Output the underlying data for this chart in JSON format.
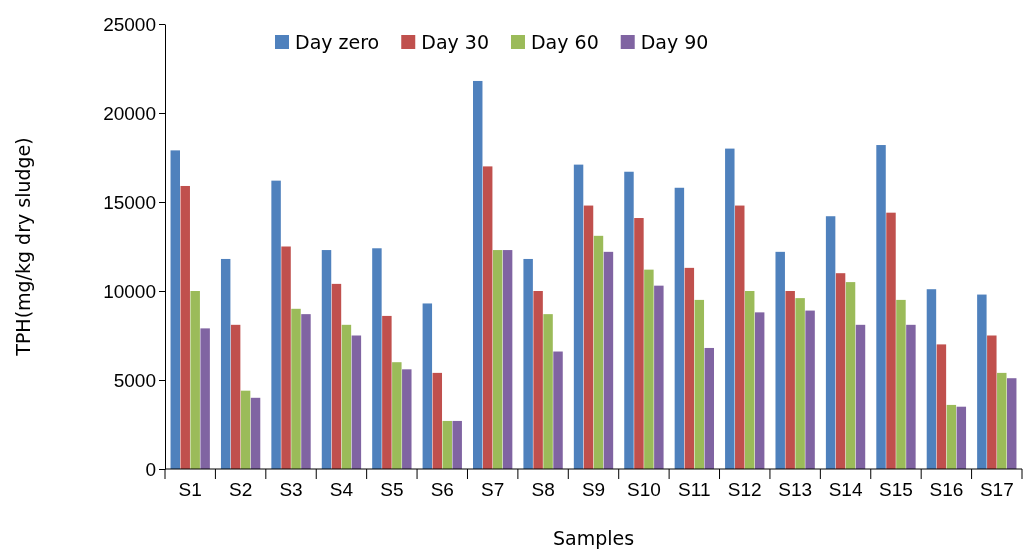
{
  "chart_data": {
    "type": "bar",
    "xlabel": "Samples",
    "ylabel": "TPH(mg/kg dry sludge)",
    "categories": [
      "S1",
      "S2",
      "S3",
      "S4",
      "S5",
      "S6",
      "S7",
      "S8",
      "S9",
      "S10",
      "S11",
      "S12",
      "S13",
      "S14",
      "S15",
      "S16",
      "S17"
    ],
    "series": [
      {
        "name": "Day zero",
        "color": "#4f81bd",
        "values": [
          17900,
          11800,
          16200,
          12300,
          12400,
          9300,
          21800,
          11800,
          17100,
          16700,
          15800,
          18000,
          12200,
          14200,
          18200,
          10100,
          9800
        ]
      },
      {
        "name": "Day 30",
        "color": "#c0504d",
        "values": [
          15900,
          8100,
          12500,
          10400,
          8600,
          5400,
          17000,
          10000,
          14800,
          14100,
          11300,
          14800,
          10000,
          11000,
          14400,
          7000,
          7500
        ]
      },
      {
        "name": "Day 60",
        "color": "#9bbb59",
        "values": [
          10000,
          4400,
          9000,
          8100,
          6000,
          2700,
          12300,
          8700,
          13100,
          11200,
          9500,
          10000,
          9600,
          10500,
          9500,
          3600,
          5400
        ]
      },
      {
        "name": "Day 90",
        "color": "#8064a2",
        "values": [
          7900,
          4000,
          8700,
          7500,
          5600,
          2700,
          12300,
          6600,
          12200,
          10300,
          6800,
          8800,
          8900,
          8100,
          8100,
          3500,
          5100
        ]
      }
    ],
    "ylim": [
      0,
      25000
    ],
    "yticks": [
      0,
      5000,
      10000,
      15000,
      20000,
      25000
    ],
    "grid": false,
    "legend": "top"
  }
}
